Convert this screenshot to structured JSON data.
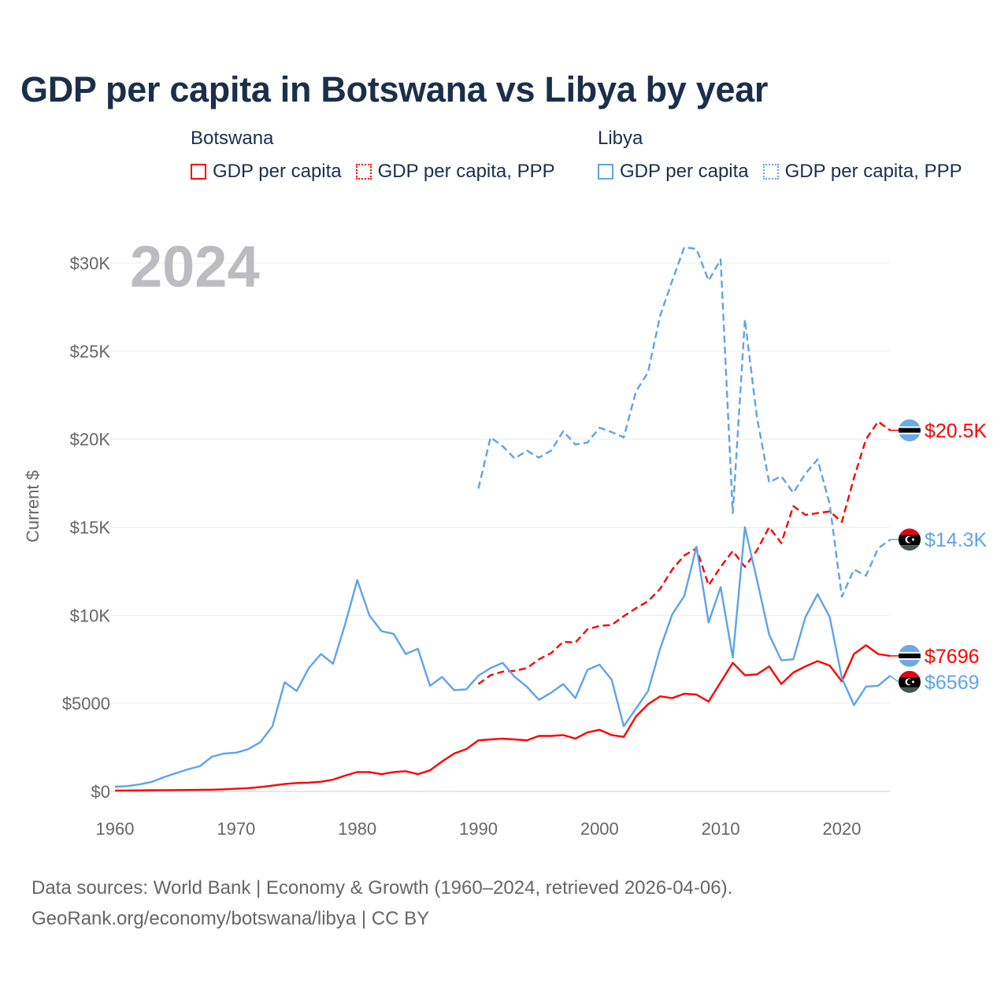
{
  "title": "GDP per capita in Botswana vs Libya by year",
  "legend": {
    "groups": [
      {
        "name": "Botswana",
        "items": [
          "GDP per capita",
          "GDP per capita, PPP"
        ],
        "color": "#ff0000"
      },
      {
        "name": "Libya",
        "items": [
          "GDP per capita",
          "GDP per capita, PPP"
        ],
        "color": "#5ea3ea"
      }
    ]
  },
  "current_year": "2024",
  "footer": {
    "line1": "Data sources: World Bank | Economy & Growth (1960–2024, retrieved 2026-04-06).",
    "line2": "GeoRank.org/economy/botswana/libya | CC BY"
  },
  "chart_data": {
    "type": "line",
    "title": "GDP per capita in Botswana vs Libya by year",
    "xlabel": "",
    "ylabel": "Current $",
    "xlim": [
      1960,
      2024
    ],
    "ylim": [
      0,
      31000
    ],
    "x_ticks": [
      1960,
      1970,
      1980,
      1990,
      2000,
      2010,
      2020
    ],
    "x_tick_labels": [
      "1960",
      "1970",
      "1980",
      "1990",
      "2000",
      "2010",
      "2020"
    ],
    "y_ticks": [
      0,
      5000,
      10000,
      15000,
      20000,
      25000,
      30000
    ],
    "y_tick_labels": [
      "$0",
      "$5000",
      "$10K",
      "$15K",
      "$20K",
      "$25K",
      "$30K"
    ],
    "grid": true,
    "legend_position": "top",
    "series": [
      {
        "name": "Botswana GDP per capita",
        "color": "#ff0000",
        "dashed": false,
        "start_year": 1960,
        "end_label": "$7696",
        "flag": "botswana",
        "values": [
          50,
          55,
          60,
          65,
          70,
          75,
          80,
          90,
          100,
          120,
          150,
          190,
          250,
          330,
          420,
          480,
          500,
          550,
          670,
          900,
          1100,
          1100,
          980,
          1100,
          1150,
          980,
          1200,
          1700,
          2150,
          2400,
          2900,
          2950,
          3000,
          2950,
          2900,
          3150,
          3150,
          3200,
          3000,
          3350,
          3500,
          3200,
          3100,
          4250,
          4950,
          5400,
          5300,
          5550,
          5500,
          5100,
          6200,
          7300,
          6600,
          6650,
          7100,
          6100,
          6750,
          7100,
          7400,
          7150,
          6250,
          7800,
          8300,
          7800,
          7696
        ]
      },
      {
        "name": "Botswana GDP per capita, PPP",
        "color": "#ff0000",
        "dashed": true,
        "start_year": 1990,
        "end_label": "$20.5K",
        "flag": "botswana",
        "values": [
          6100,
          6600,
          6800,
          6850,
          7000,
          7500,
          7850,
          8500,
          8450,
          9200,
          9400,
          9450,
          9950,
          10400,
          10800,
          11500,
          12600,
          13400,
          13800,
          11700,
          12750,
          13650,
          12750,
          13700,
          15000,
          14100,
          16200,
          15700,
          15800,
          15900,
          15300,
          17800,
          20000,
          21000,
          20500
        ]
      },
      {
        "name": "Libya GDP per capita",
        "color": "#5ea3ea",
        "dashed": false,
        "start_year": 1960,
        "end_label": "$6569",
        "flag": "libya",
        "values": [
          270,
          300,
          400,
          530,
          800,
          1030,
          1250,
          1430,
          1970,
          2150,
          2200,
          2400,
          2800,
          3700,
          6200,
          5700,
          7000,
          7800,
          7250,
          9500,
          12000,
          10000,
          9100,
          8950,
          7800,
          8100,
          6000,
          6500,
          5750,
          5800,
          6570,
          7000,
          7300,
          6500,
          5950,
          5200,
          5600,
          6100,
          5300,
          6900,
          7200,
          6350,
          3700,
          4700,
          5700,
          8100,
          10050,
          11100,
          13900,
          9600,
          11600,
          7600,
          15000,
          12000,
          8900,
          7450,
          7500,
          9900,
          11200,
          9900,
          6450,
          4900,
          5950,
          6000,
          6569
        ]
      },
      {
        "name": "Libya GDP per capita, PPP",
        "color": "#5ea3ea",
        "dashed": true,
        "start_year": 1990,
        "end_label": "$14.3K",
        "flag": "libya",
        "values": [
          17200,
          20100,
          19600,
          18900,
          19350,
          18950,
          19350,
          20450,
          19700,
          19800,
          20650,
          20400,
          20100,
          22700,
          23800,
          27000,
          29000,
          30900,
          30800,
          29000,
          30200,
          15800,
          26800,
          21200,
          17550,
          17900,
          16950,
          18050,
          18850,
          16300,
          11050,
          12600,
          12250,
          13800,
          14300
        ]
      }
    ]
  }
}
